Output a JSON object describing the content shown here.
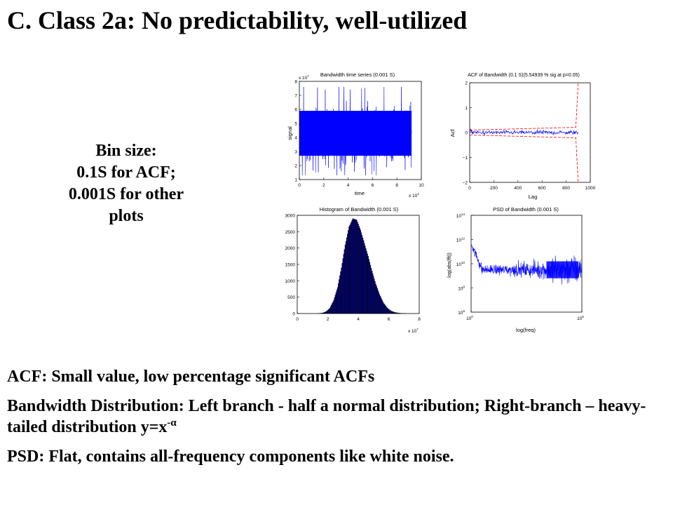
{
  "slide": {
    "title": "C. Class 2a: No predictability, well-utilized",
    "bin_note": [
      "Bin size:",
      "0.1S for ACF;",
      "0.001S for other",
      "plots"
    ],
    "notes": [
      {
        "text": "ACF: Small value, low percentage significant ACFs"
      },
      {
        "text": "Bandwidth Distribution: Left branch - half a normal distribution; Right-branch – heavy-tailed distribution y=x",
        "sup": "-α"
      },
      {
        "text": "PSD: Flat, contains all-frequency components like white noise."
      }
    ]
  },
  "chart_data": [
    {
      "id": "timeseries",
      "type": "line",
      "title": "Bandwidth time series (0.001 S)",
      "xlabel": "time",
      "ylabel": "signal",
      "x_multiplier": "x 10",
      "x_exponent": "4",
      "y_multiplier": "x 10",
      "y_exponent": "7",
      "xlim": [
        0,
        10
      ],
      "ylim": [
        1,
        8
      ],
      "xticks": [
        "0",
        "2",
        "4",
        "6",
        "8",
        "10"
      ],
      "yticks": [
        "1",
        "2",
        "3",
        "4",
        "5",
        "6",
        "7",
        "8"
      ],
      "data_extent": [
        0,
        9.2
      ],
      "band": {
        "mean": 4.0,
        "typical_range": [
          2.3,
          6.3
        ],
        "extremes": [
          1.3,
          7.6
        ]
      },
      "color": "#0000ff"
    },
    {
      "id": "acf",
      "type": "line",
      "title": "ACF of Bandwidth (0.1 S)(5.54939 % sig at p=0.05)",
      "xlabel": "Lag",
      "ylabel": "Acf",
      "xlim": [
        0,
        1000
      ],
      "ylim": [
        -2,
        2
      ],
      "xticks": [
        "0",
        "200",
        "400",
        "600",
        "800",
        "1000"
      ],
      "yticks": [
        "−2",
        "−1",
        "0",
        "1",
        "2"
      ],
      "series": [
        {
          "style": "acf",
          "color": "#0000ff",
          "max_lag": 900,
          "peak": 0.15
        },
        {
          "style": "significance-bounds",
          "color": "#ff0000",
          "base": 0.1,
          "diverge_at": 880
        }
      ]
    },
    {
      "id": "histogram",
      "type": "bar",
      "title": "Histogram of Bandwidth (0.001 S)",
      "x_multiplier": "x 10",
      "x_exponent": "7",
      "xlim": [
        0,
        8
      ],
      "ylim": [
        0,
        3000
      ],
      "xticks": [
        "0",
        "2",
        "4",
        "6",
        "8"
      ],
      "yticks": [
        "0",
        "500",
        "1000",
        "1500",
        "2000",
        "2500",
        "3000"
      ],
      "bins": {
        "x": [
          1.5,
          1.75,
          2.0,
          2.25,
          2.5,
          2.75,
          3.0,
          3.25,
          3.5,
          3.75,
          4.0,
          4.25,
          4.5,
          4.75,
          5.0,
          5.25,
          5.5,
          5.75,
          6.0,
          6.25,
          6.5,
          6.75,
          7.0
        ],
        "values": [
          5,
          15,
          60,
          170,
          410,
          800,
          1400,
          2100,
          2650,
          2900,
          2860,
          2550,
          2150,
          1750,
          1300,
          900,
          580,
          330,
          170,
          80,
          35,
          15,
          5
        ]
      },
      "color": "#000080"
    },
    {
      "id": "psd",
      "type": "line",
      "title": "PSD of Bandwidth (0.001 S)",
      "xlabel": "log(freq)",
      "ylabel": "log(abs(fft))",
      "xscale": "log",
      "yscale": "log",
      "xlim": [
        1,
        100000
      ],
      "ylim": [
        1000000.0,
        100000000000000.0
      ],
      "xticks": [
        {
          "base": "10",
          "exp": "0"
        },
        {
          "base": "10",
          "exp": "5"
        }
      ],
      "yticks": [
        {
          "base": "10",
          "exp": "6"
        },
        {
          "base": "10",
          "exp": "8"
        },
        {
          "base": "10",
          "exp": "10"
        },
        {
          "base": "10",
          "exp": "12"
        },
        {
          "base": "10",
          "exp": "14"
        }
      ],
      "series": [
        {
          "color": "#0000ff",
          "start_exp": 11.7,
          "floor_exp": 9.5,
          "noise_band_exp": [
            8.5,
            10.4
          ]
        }
      ]
    }
  ]
}
